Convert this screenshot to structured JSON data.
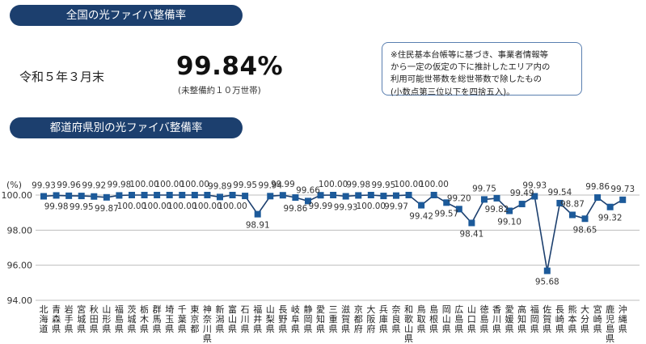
{
  "header": {
    "title": "全国の光ファイバ整備率",
    "as_of": "令和５年３月末",
    "rate": "99.84%",
    "rate_note": "(未整備約１０万世帯)"
  },
  "note": {
    "lines": [
      "※住民基本台帳等に基づき、事業者情報等",
      "から一定の仮定の下に推計したエリア内の",
      "利用可能世帯数を総世帯数で除したもの",
      "(小数点第三位以下を四捨五入)。"
    ]
  },
  "chart_data": {
    "type": "line",
    "title": "都道府県別の光ファイバ整備率",
    "ylabel": "(%)",
    "ylim": [
      94.0,
      100.0
    ],
    "yticks": [
      "100.00",
      "98.00",
      "96.00",
      "94.00"
    ],
    "marker": "square",
    "colors": {
      "line": "#1c3f6e",
      "marker": "#1c5a9a",
      "grid": "#bdbdbd"
    },
    "categories": [
      "北海道",
      "青森県",
      "岩手県",
      "宮城県",
      "秋田県",
      "山形県",
      "福島県",
      "茨城県",
      "栃木県",
      "群馬県",
      "埼玉県",
      "千葉県",
      "東京都",
      "神奈川県",
      "新潟県",
      "富山県",
      "石川県",
      "福井県",
      "山梨県",
      "長野県",
      "岐阜県",
      "静岡県",
      "愛知県",
      "三重県",
      "滋賀県",
      "京都府",
      "大阪府",
      "兵庫県",
      "奈良県",
      "和歌山県",
      "鳥取県",
      "島根県",
      "岡山県",
      "広島県",
      "山口県",
      "徳島県",
      "香川県",
      "愛媛県",
      "高知県",
      "福岡県",
      "佐賀県",
      "長崎県",
      "熊本県",
      "大分県",
      "宮崎県",
      "鹿児島県",
      "沖縄県"
    ],
    "values": [
      99.93,
      99.98,
      99.96,
      99.95,
      99.92,
      99.87,
      99.98,
      100.0,
      100.0,
      100.0,
      100.0,
      100.0,
      100.0,
      100.0,
      99.89,
      100.0,
      99.95,
      98.91,
      99.94,
      99.99,
      99.86,
      99.66,
      99.99,
      100.0,
      99.93,
      99.98,
      100.0,
      99.95,
      99.97,
      100.0,
      99.42,
      100.0,
      99.57,
      99.2,
      98.41,
      99.75,
      99.82,
      99.1,
      99.49,
      99.93,
      95.68,
      99.54,
      98.87,
      98.65,
      99.86,
      99.32,
      99.73
    ],
    "value_labels": [
      "99.93",
      "99.98",
      "99.96",
      "99.95",
      "99.92",
      "99.87",
      "99.98",
      "100.00",
      "100.00",
      "100.00",
      "100.00",
      "100.00",
      "100.00",
      "100.00",
      "99.89",
      "100.00",
      "99.95",
      "98.91",
      "99.94",
      "99.99",
      "99.86",
      "99.66",
      "99.99",
      "100.00",
      "99.93",
      "99.98",
      "100.00",
      "99.95",
      "99.97",
      "100.00",
      "99.42",
      "100.00",
      "99.57",
      "99.20",
      "98.41",
      "99.75",
      "99.82",
      "99.10",
      "99.49",
      "99.93",
      "95.68",
      "99.54",
      "98.87",
      "98.65",
      "99.86",
      "99.32",
      "99.73"
    ],
    "label_side": [
      "above",
      "below",
      "above",
      "below",
      "above",
      "below",
      "above",
      "below",
      "above",
      "below",
      "above",
      "below",
      "above",
      "below",
      "above",
      "below",
      "above",
      "below",
      "above",
      "above",
      "below",
      "above",
      "below",
      "above",
      "below",
      "above",
      "below",
      "above",
      "below",
      "above",
      "below",
      "above",
      "below",
      "above",
      "below",
      "above",
      "below",
      "below",
      "above",
      "above",
      "below",
      "above",
      "above",
      "below",
      "above",
      "below",
      "above"
    ]
  }
}
